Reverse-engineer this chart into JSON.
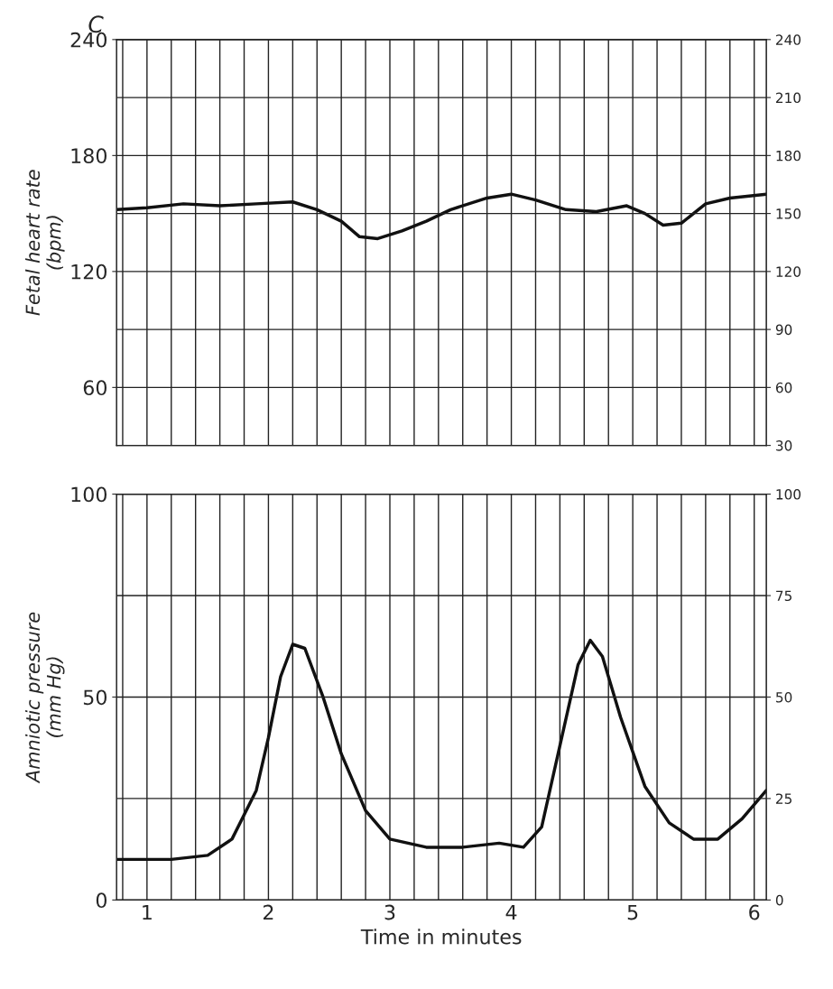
{
  "chart_data": [
    {
      "type": "line",
      "annotations": [
        "C"
      ],
      "ylabel": "Fetal heart rate\n(bpm)",
      "xlim": [
        0.75,
        6.1
      ],
      "xticks": [
        {
          "value": 0.8,
          "label": null
        },
        1,
        {
          "value": 1.2,
          "label": null
        },
        {
          "value": 1.4,
          "label": null
        },
        {
          "value": 1.6,
          "label": null
        },
        {
          "value": 1.8,
          "label": null
        },
        2,
        {
          "value": 2.2,
          "label": null
        },
        {
          "value": 2.4,
          "label": null
        },
        {
          "value": 2.6,
          "label": null
        },
        {
          "value": 2.8,
          "label": null
        },
        3,
        {
          "value": 3.2,
          "label": null
        },
        {
          "value": 3.4,
          "label": null
        },
        {
          "value": 3.6,
          "label": null
        },
        {
          "value": 3.8,
          "label": null
        },
        4,
        {
          "value": 4.2,
          "label": null
        },
        {
          "value": 4.4,
          "label": null
        },
        {
          "value": 4.6,
          "label": null
        },
        {
          "value": 4.8,
          "label": null
        },
        5,
        {
          "value": 5.2,
          "label": null
        },
        {
          "value": 5.4,
          "label": null
        },
        {
          "value": 5.6,
          "label": null
        },
        {
          "value": 5.8,
          "label": null
        },
        6
      ],
      "ylim": [
        30,
        240
      ],
      "yticks": [
        60,
        120,
        180,
        240
      ],
      "y2lim": [
        30,
        240
      ],
      "y2ticks": [
        30,
        60,
        90,
        120,
        150,
        180,
        210,
        240
      ],
      "tick_labels": "y",
      "grid": true,
      "x": [
        0.75,
        1.0,
        1.3,
        1.6,
        1.9,
        2.2,
        2.4,
        2.6,
        2.75,
        2.9,
        3.1,
        3.3,
        3.5,
        3.8,
        4.0,
        4.2,
        4.45,
        4.7,
        4.95,
        5.1,
        5.25,
        5.4,
        5.6,
        5.8,
        6.1
      ],
      "series": [
        {
          "color": "#111111",
          "values": [
            152,
            153,
            155,
            154,
            155,
            156,
            152,
            146,
            138,
            137,
            141,
            146,
            152,
            158,
            160,
            157,
            152,
            151,
            154,
            150,
            144,
            145,
            155,
            158,
            160
          ]
        }
      ]
    },
    {
      "type": "line",
      "ylabel": "Amniotic pressure\n(mm Hg)",
      "xlabel": "Time in minutes",
      "xlim": [
        0.75,
        6.1
      ],
      "xticks": [
        {
          "value": 0.8,
          "label": null
        },
        1,
        {
          "value": 1.2,
          "label": null
        },
        {
          "value": 1.4,
          "label": null
        },
        {
          "value": 1.6,
          "label": null
        },
        {
          "value": 1.8,
          "label": null
        },
        2,
        {
          "value": 2.2,
          "label": null
        },
        {
          "value": 2.4,
          "label": null
        },
        {
          "value": 2.6,
          "label": null
        },
        {
          "value": 2.8,
          "label": null
        },
        3,
        {
          "value": 3.2,
          "label": null
        },
        {
          "value": 3.4,
          "label": null
        },
        {
          "value": 3.6,
          "label": null
        },
        {
          "value": 3.8,
          "label": null
        },
        4,
        {
          "value": 4.2,
          "label": null
        },
        {
          "value": 4.4,
          "label": null
        },
        {
          "value": 4.6,
          "label": null
        },
        {
          "value": 4.8,
          "label": null
        },
        5,
        {
          "value": 5.2,
          "label": null
        },
        {
          "value": 5.4,
          "label": null
        },
        {
          "value": 5.6,
          "label": null
        },
        {
          "value": 5.8,
          "label": null
        },
        6
      ],
      "ylim": [
        0,
        100
      ],
      "yticks": [
        0,
        50,
        100
      ],
      "y2lim": [
        0,
        100
      ],
      "y2ticks": [
        0,
        25,
        50,
        75,
        100
      ],
      "grid": true,
      "x": [
        0.75,
        1.2,
        1.5,
        1.7,
        1.9,
        2.0,
        2.1,
        2.2,
        2.3,
        2.45,
        2.6,
        2.8,
        3.0,
        3.3,
        3.6,
        3.9,
        4.1,
        4.25,
        4.4,
        4.55,
        4.65,
        4.75,
        4.9,
        5.1,
        5.3,
        5.5,
        5.7,
        5.9,
        6.1
      ],
      "series": [
        {
          "color": "#111111",
          "values": [
            10,
            10,
            11,
            15,
            27,
            40,
            55,
            63,
            62,
            50,
            36,
            22,
            15,
            13,
            13,
            14,
            13,
            18,
            38,
            58,
            64,
            60,
            45,
            28,
            19,
            15,
            15,
            20,
            27
          ]
        }
      ]
    }
  ]
}
